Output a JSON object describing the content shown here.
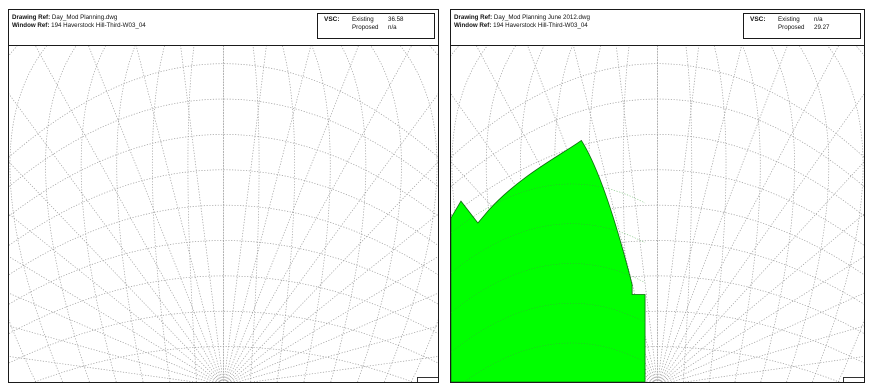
{
  "panels": [
    {
      "drawing_ref_label": "Drawing Ref:",
      "drawing_ref_value": "Day_Mod Planning.dwg",
      "window_ref_label": "Window Ref:",
      "window_ref_value": "194 Haverstock Hill-Third-W03_04",
      "vsc_label": "VSC:",
      "existing_label": "Existing",
      "existing_value": "36.58",
      "proposed_label": "Proposed",
      "proposed_value": "n/a"
    },
    {
      "drawing_ref_label": "Drawing Ref:",
      "drawing_ref_value": "Day_Mod Planning June 2012.dwg",
      "window_ref_label": "Window Ref:",
      "window_ref_value": "194 Haverstock Hill-Third-W03_04",
      "vsc_label": "VSC:",
      "existing_label": "Existing",
      "existing_value": "n/a",
      "proposed_label": "Proposed",
      "proposed_value": "29.27"
    }
  ],
  "colors": {
    "obstruction": "#00ff00",
    "grid": "#9a9a9a",
    "border": "#1a1a1a"
  }
}
